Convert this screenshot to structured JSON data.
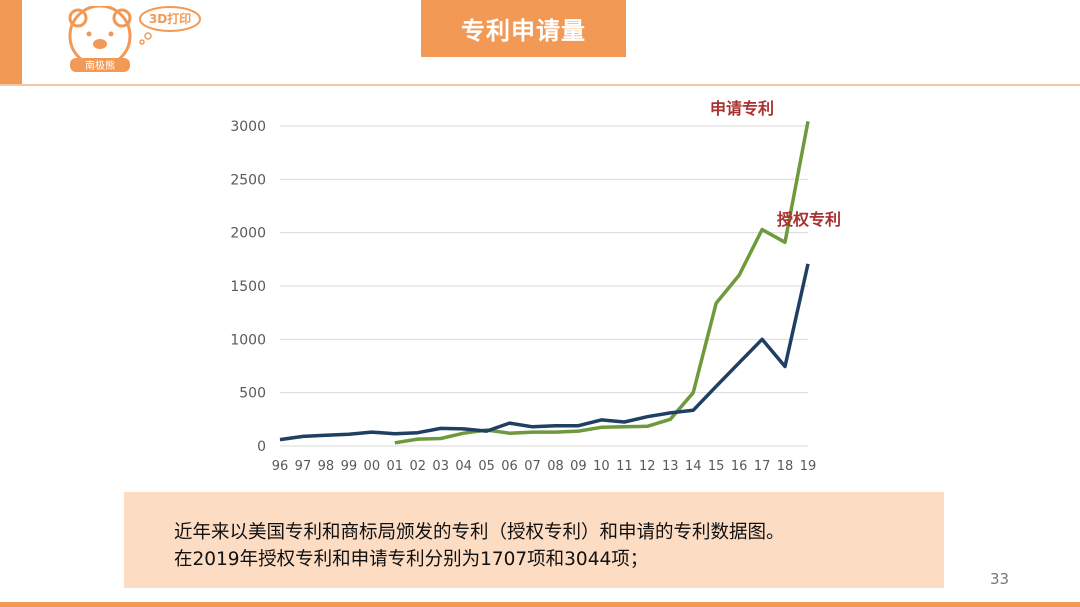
{
  "header": {
    "title": "专利申请量",
    "logo_badge": "3D打印",
    "logo_name": "南极熊"
  },
  "chart_data": {
    "type": "line",
    "x": [
      "96",
      "97",
      "98",
      "99",
      "00",
      "01",
      "02",
      "03",
      "04",
      "05",
      "06",
      "07",
      "08",
      "09",
      "10",
      "11",
      "12",
      "13",
      "14",
      "15",
      "16",
      "17",
      "18",
      "19"
    ],
    "ylim": [
      0,
      3000
    ],
    "yticks": [
      0,
      500,
      1000,
      1500,
      2000,
      2500,
      3000
    ],
    "grid": true,
    "series": [
      {
        "name": "申请专利",
        "color": "#6e9a3c",
        "values": [
          null,
          null,
          null,
          null,
          null,
          30,
          65,
          70,
          120,
          150,
          120,
          130,
          130,
          140,
          175,
          180,
          185,
          250,
          500,
          1340,
          1600,
          2030,
          1910,
          3044
        ]
      },
      {
        "name": "授权专利",
        "color": "#1f3f63",
        "values": [
          60,
          90,
          100,
          110,
          130,
          115,
          125,
          165,
          160,
          140,
          215,
          180,
          190,
          190,
          245,
          225,
          275,
          310,
          335,
          560,
          780,
          1000,
          745,
          1707
        ]
      }
    ]
  },
  "caption": {
    "line1": "近年来以美国专利和商标局颁发的专利（授权专利）和申请的专利数据图。",
    "line2": "在2019年授权专利和申请专利分别为1707项和3044项；"
  },
  "page_number": "33"
}
